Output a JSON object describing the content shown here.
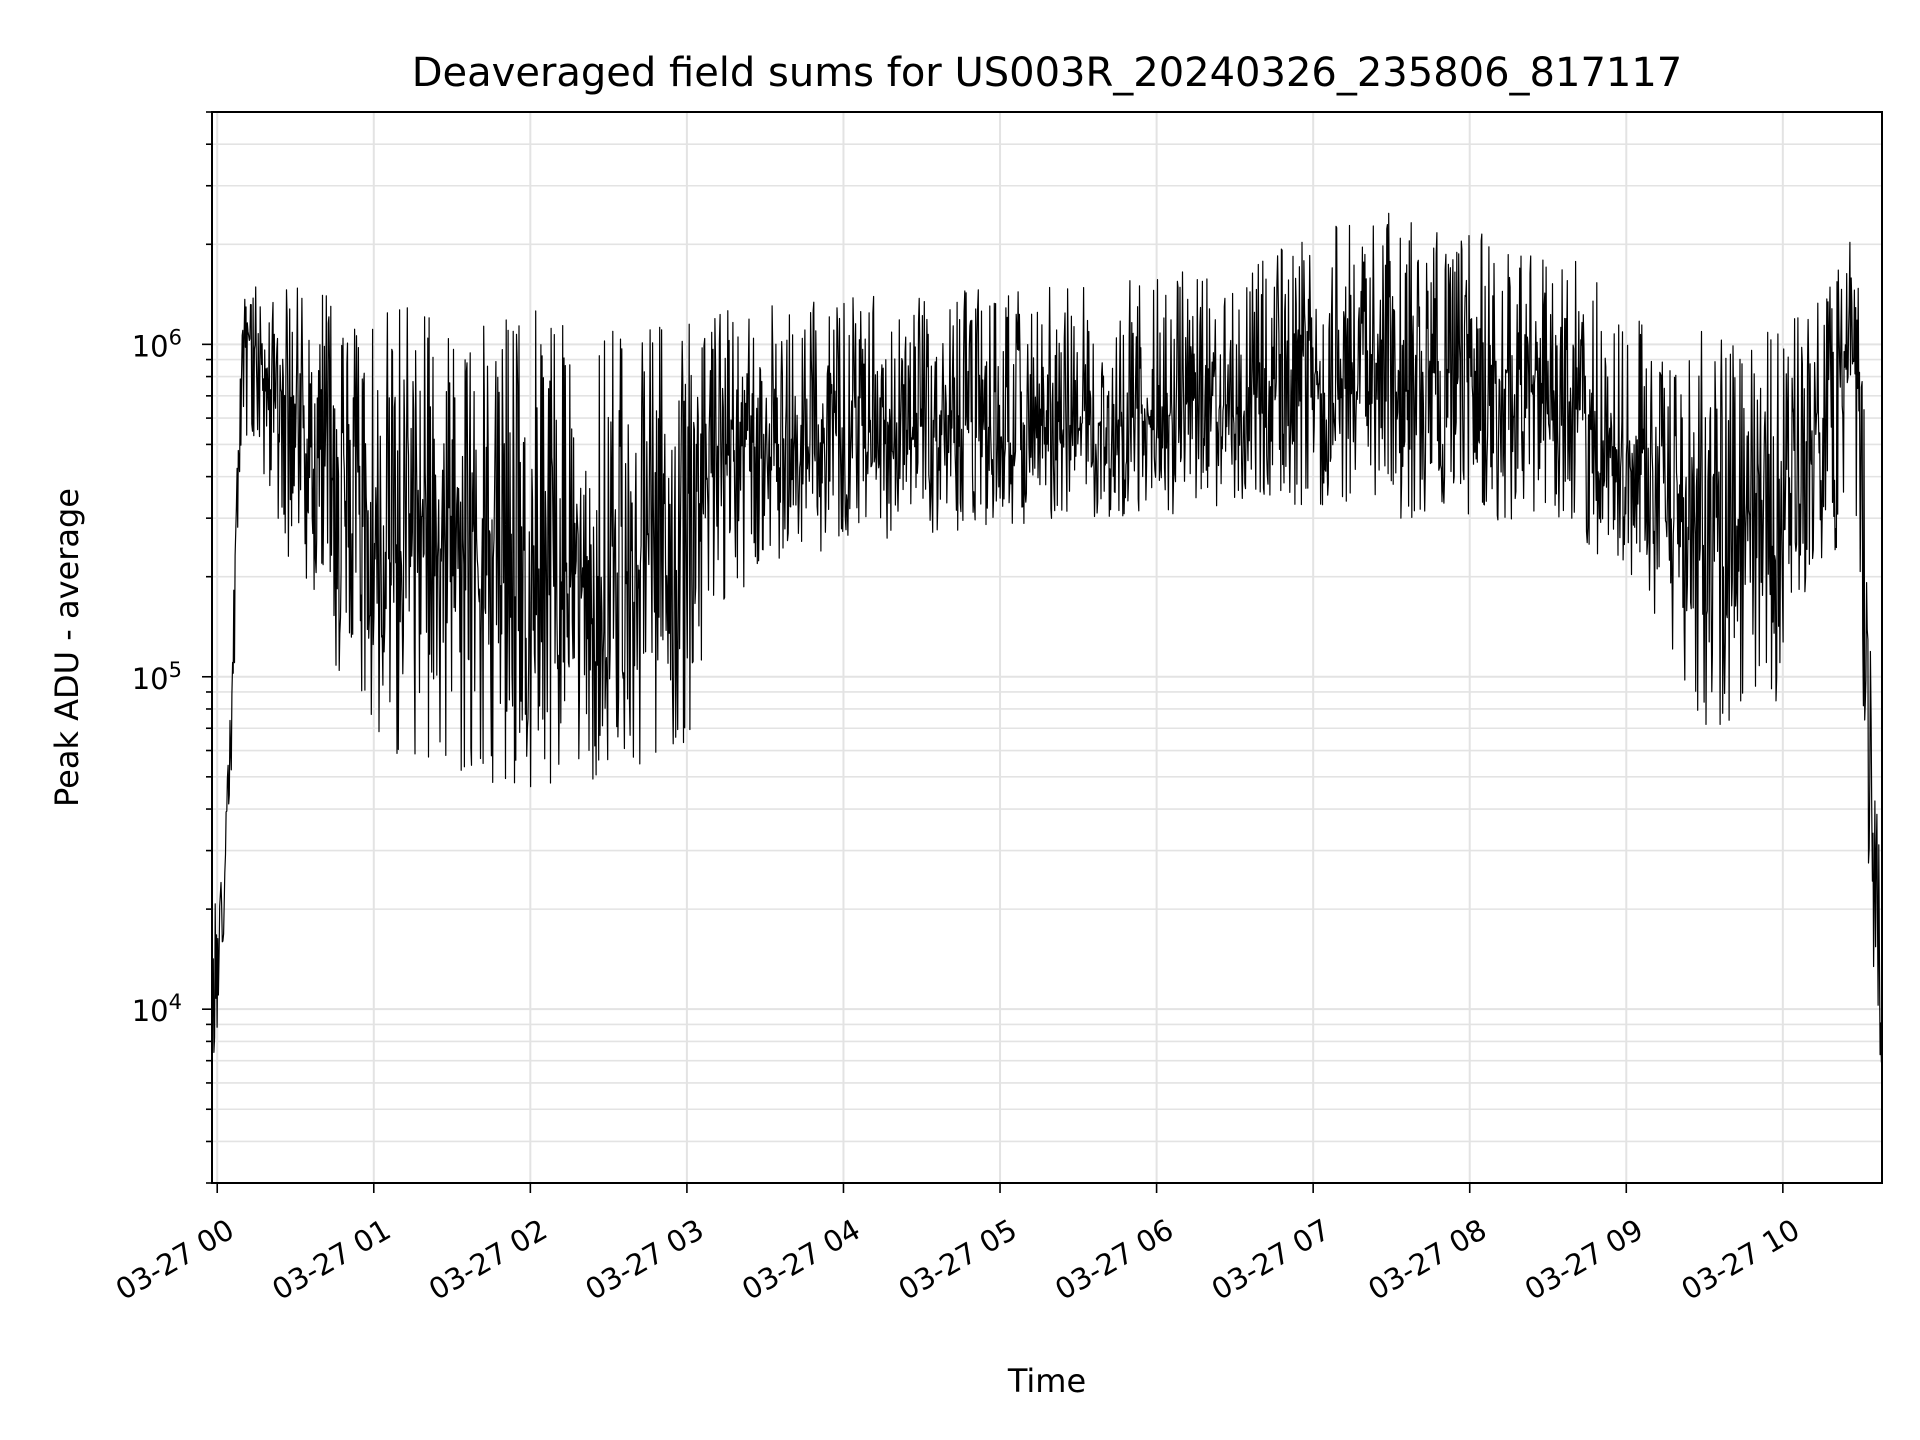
{
  "chart_data": {
    "type": "line",
    "title": "Deaveraged field sums for US003R_20240326_235806_817117",
    "xlabel": "Time",
    "ylabel": "Peak ADU - average",
    "y_scale": "log",
    "ylim": [
      3000,
      5000000
    ],
    "xlim": [
      "03-26 23:58",
      "03-27 10:38"
    ],
    "grid": true,
    "line_color": "#000000",
    "x_ticks": [
      "03-27 00",
      "03-27 01",
      "03-27 02",
      "03-27 03",
      "03-27 04",
      "03-27 05",
      "03-27 06",
      "03-27 07",
      "03-27 08",
      "03-27 09",
      "03-27 10"
    ],
    "y_ticks": [
      {
        "value": 10000,
        "base": "10",
        "exp": "4"
      },
      {
        "value": 100000,
        "base": "10",
        "exp": "5"
      },
      {
        "value": 1000000,
        "base": "10",
        "exp": "6"
      }
    ],
    "envelope": {
      "x": [
        "03-26 23:58",
        "03-27 00:03",
        "03-27 00:10",
        "03-27 00:30",
        "03-27 01:00",
        "03-27 01:30",
        "03-27 02:00",
        "03-27 02:30",
        "03-27 03:00",
        "03-27 03:10",
        "03-27 03:30",
        "03-27 04:00",
        "03-27 04:30",
        "03-27 05:00",
        "03-27 05:30",
        "03-27 06:00",
        "03-27 06:30",
        "03-27 07:00",
        "03-27 07:30",
        "03-27 08:00",
        "03-27 08:30",
        "03-27 09:00",
        "03-27 09:30",
        "03-27 10:00",
        "03-27 10:15",
        "03-27 10:28",
        "03-27 10:33",
        "03-27 10:38"
      ],
      "low": [
        4000,
        15000,
        500000,
        200000,
        60000,
        50000,
        45000,
        50000,
        60000,
        150000,
        200000,
        250000,
        270000,
        280000,
        300000,
        300000,
        320000,
        330000,
        300000,
        300000,
        280000,
        200000,
        70000,
        80000,
        200000,
        300000,
        20000,
        6000
      ],
      "high": [
        25000,
        40000,
        1500000,
        1500000,
        1300000,
        1300000,
        1300000,
        1100000,
        1300000,
        1300000,
        1400000,
        1400000,
        1400000,
        1500000,
        1500000,
        1600000,
        1800000,
        2200000,
        2500000,
        2200000,
        2000000,
        1500000,
        1100000,
        1100000,
        1500000,
        2500000,
        300000,
        15000
      ],
      "mid": [
        12000,
        25000,
        1100000,
        600000,
        250000,
        220000,
        200000,
        200000,
        250000,
        450000,
        500000,
        550000,
        560000,
        560000,
        580000,
        600000,
        650000,
        750000,
        850000,
        800000,
        750000,
        500000,
        250000,
        250000,
        600000,
        1200000,
        60000,
        9000
      ]
    }
  }
}
